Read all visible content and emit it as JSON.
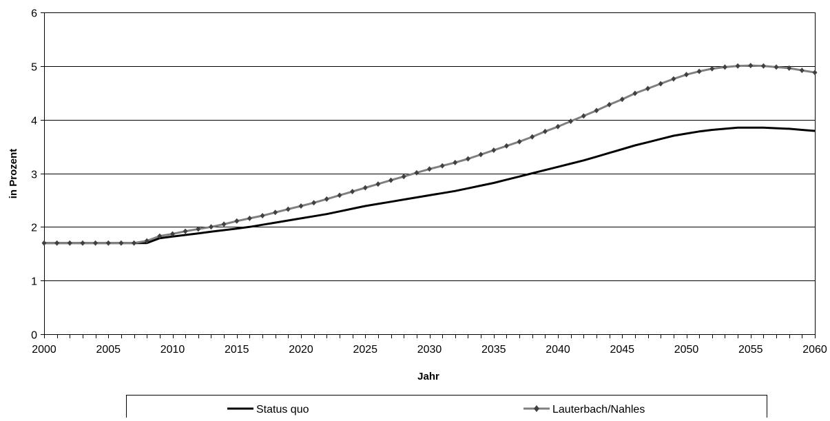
{
  "chart_data": {
    "type": "line",
    "xlabel": "Jahr",
    "ylabel": "in Prozent",
    "xlim": [
      2000,
      2060
    ],
    "ylim": [
      0,
      6
    ],
    "x_ticks": [
      2000,
      2005,
      2010,
      2015,
      2020,
      2025,
      2030,
      2035,
      2040,
      2045,
      2050,
      2055,
      2060
    ],
    "y_ticks": [
      0,
      1,
      2,
      3,
      4,
      5,
      6
    ],
    "grid": "horizontal",
    "legend_position": "bottom",
    "series": [
      {
        "name": "Status quo",
        "color": "#000000",
        "marker": "none",
        "x": [
          2000,
          2001,
          2002,
          2003,
          2004,
          2005,
          2006,
          2007,
          2008,
          2009,
          2010,
          2011,
          2012,
          2013,
          2014,
          2015,
          2016,
          2017,
          2018,
          2019,
          2020,
          2021,
          2022,
          2023,
          2024,
          2025,
          2026,
          2027,
          2028,
          2029,
          2030,
          2031,
          2032,
          2033,
          2034,
          2035,
          2036,
          2037,
          2038,
          2039,
          2040,
          2041,
          2042,
          2043,
          2044,
          2045,
          2046,
          2047,
          2048,
          2049,
          2050,
          2051,
          2052,
          2053,
          2054,
          2055,
          2056,
          2057,
          2058,
          2059,
          2060
        ],
        "values": [
          1.7,
          1.7,
          1.7,
          1.7,
          1.7,
          1.7,
          1.7,
          1.7,
          1.7,
          1.79,
          1.82,
          1.85,
          1.88,
          1.91,
          1.94,
          1.97,
          2.0,
          2.04,
          2.08,
          2.12,
          2.16,
          2.2,
          2.24,
          2.29,
          2.34,
          2.39,
          2.43,
          2.47,
          2.51,
          2.55,
          2.59,
          2.63,
          2.67,
          2.72,
          2.77,
          2.82,
          2.88,
          2.94,
          3.0,
          3.06,
          3.12,
          3.18,
          3.24,
          3.31,
          3.38,
          3.45,
          3.52,
          3.58,
          3.64,
          3.7,
          3.74,
          3.78,
          3.81,
          3.83,
          3.85,
          3.85,
          3.85,
          3.84,
          3.83,
          3.81,
          3.79
        ]
      },
      {
        "name": "Lauterbach/Nahles",
        "color": "#808080",
        "marker": "diamond",
        "marker_color": "#404040",
        "x": [
          2000,
          2001,
          2002,
          2003,
          2004,
          2005,
          2006,
          2007,
          2008,
          2009,
          2010,
          2011,
          2012,
          2013,
          2014,
          2015,
          2016,
          2017,
          2018,
          2019,
          2020,
          2021,
          2022,
          2023,
          2024,
          2025,
          2026,
          2027,
          2028,
          2029,
          2030,
          2031,
          2032,
          2033,
          2034,
          2035,
          2036,
          2037,
          2038,
          2039,
          2040,
          2041,
          2042,
          2043,
          2044,
          2045,
          2046,
          2047,
          2048,
          2049,
          2050,
          2051,
          2052,
          2053,
          2054,
          2055,
          2056,
          2057,
          2058,
          2059,
          2060
        ],
        "values": [
          1.7,
          1.7,
          1.7,
          1.7,
          1.7,
          1.7,
          1.7,
          1.7,
          1.74,
          1.83,
          1.87,
          1.92,
          1.96,
          2.0,
          2.05,
          2.11,
          2.16,
          2.21,
          2.27,
          2.33,
          2.39,
          2.45,
          2.52,
          2.59,
          2.66,
          2.73,
          2.8,
          2.87,
          2.94,
          3.01,
          3.08,
          3.14,
          3.2,
          3.27,
          3.35,
          3.43,
          3.51,
          3.59,
          3.68,
          3.78,
          3.87,
          3.97,
          4.07,
          4.17,
          4.28,
          4.38,
          4.49,
          4.58,
          4.67,
          4.76,
          4.84,
          4.9,
          4.95,
          4.98,
          5.0,
          5.01,
          5.0,
          4.98,
          4.96,
          4.92,
          4.88
        ]
      }
    ]
  }
}
